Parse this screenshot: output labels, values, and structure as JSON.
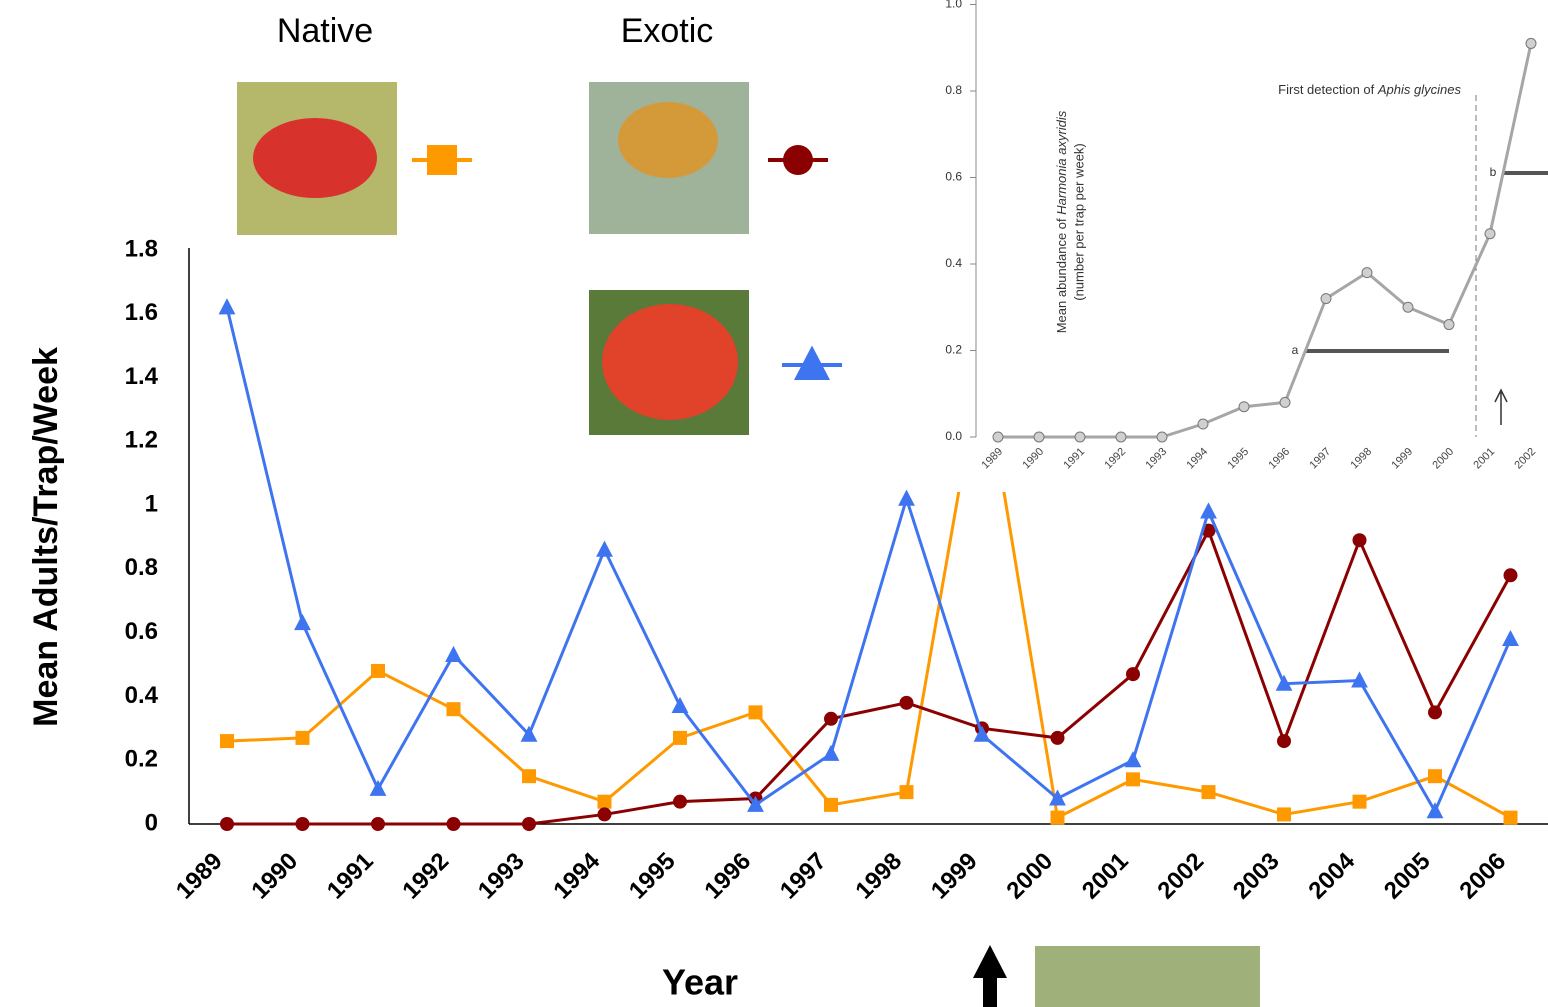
{
  "chart_data": [
    {
      "type": "line",
      "y_label": "Mean Adults/Trap/Week",
      "x_label": "Year",
      "legend_headings": [
        "Native",
        "Exotic"
      ],
      "categories": [
        "1989",
        "1990",
        "1991",
        "1992",
        "1993",
        "1994",
        "1995",
        "1996",
        "1997",
        "1998",
        "1999",
        "2000",
        "2001",
        "2002",
        "2003",
        "2004",
        "2005",
        "2006"
      ],
      "ylim": [
        0,
        1.8
      ],
      "yticks": [
        0,
        0.2,
        0.4,
        0.6,
        0.8,
        1,
        1.2,
        1.4,
        1.6,
        1.8
      ],
      "series": [
        {
          "color": "#ff9900",
          "marker": "square",
          "values": [
            0.26,
            0.27,
            0.48,
            0.36,
            0.15,
            0.07,
            0.27,
            0.35,
            0.06,
            0.1,
            1.46,
            0.02,
            0.14,
            0.1,
            0.03,
            0.07,
            0.15,
            0.02
          ]
        },
        {
          "color": "#8b0000",
          "marker": "circle",
          "values": [
            0,
            0,
            0,
            0,
            0,
            0.03,
            0.07,
            0.08,
            0.33,
            0.38,
            0.3,
            0.27,
            0.47,
            0.92,
            0.26,
            0.89,
            0.35,
            0.78
          ]
        },
        {
          "color": "#3f74f0",
          "marker": "triangle",
          "values": [
            1.62,
            0.63,
            0.11,
            0.53,
            0.28,
            0.86,
            0.37,
            0.06,
            0.22,
            1.02,
            0.28,
            0.08,
            0.2,
            0.98,
            0.44,
            0.45,
            0.04,
            0.58
          ]
        }
      ]
    },
    {
      "type": "line",
      "y_label": [
        "Mean abundance of ",
        "Harmonia axyridis",
        "(number per trap per week)"
      ],
      "annotation": [
        "First detection of ",
        "Aphis glycines"
      ],
      "group_labels": [
        "a",
        "b"
      ],
      "categories": [
        "1989",
        "1990",
        "1991",
        "1992",
        "1993",
        "1994",
        "1995",
        "1996",
        "1997",
        "1998",
        "1999",
        "2000",
        "2001",
        "2002"
      ],
      "ylim": [
        0,
        1.0
      ],
      "yticks": [
        {
          "value": 0,
          "label": "0.0"
        },
        {
          "value": 0.2,
          "label": "0.2"
        },
        {
          "value": 0.4,
          "label": "0.4"
        },
        {
          "value": 0.6,
          "label": "0.6"
        },
        {
          "value": 0.8,
          "label": "0.8"
        },
        {
          "value": 1,
          "label": "1.0"
        }
      ],
      "series": [
        {
          "color": "#a6a6a6",
          "marker": "circle",
          "values": [
            0,
            0,
            0,
            0,
            0,
            0.03,
            0.07,
            0.08,
            0.32,
            0.38,
            0.3,
            0.26,
            0.47,
            0.91
          ]
        }
      ]
    }
  ]
}
